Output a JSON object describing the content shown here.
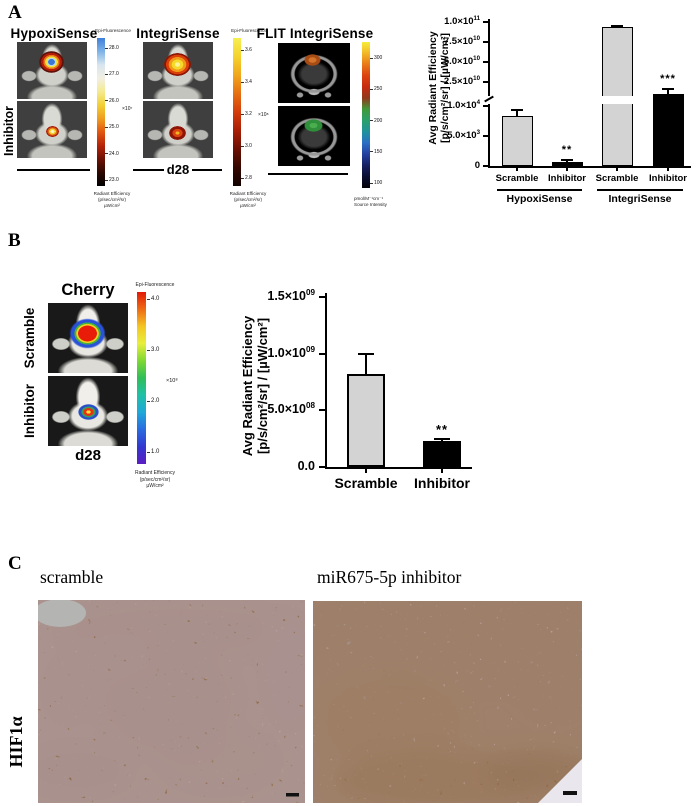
{
  "figure": {
    "panel_a": {
      "label": "A",
      "hypoxisense": {
        "title": "HypoxiSense",
        "side_label": "Inhibitor"
      },
      "integrisense": {
        "title": "IntegriSense",
        "timepoint": "d28"
      },
      "flit": {
        "title": "FLIT IntegriSense"
      },
      "colorbar_hypoxisense": {
        "top_label": "Epi-Fluorescence",
        "ticks": [
          "28.0",
          "27.0",
          "26.0",
          "25.0",
          "24.0",
          "23.0"
        ],
        "multiplier": "×10⁷",
        "bottom_label": "Radiant Efficiency\n(p/sec/cm²/sr)\nµW/cm²",
        "gradient": [
          "#3d7fd9",
          "#7eb3e8",
          "#d8e6ee",
          "#f2efe2",
          "#f4ea8e",
          "#f2cf35",
          "#ef9c1f",
          "#e0560f",
          "#b52308",
          "#6e1204",
          "#2c0801",
          "#000000"
        ]
      },
      "colorbar_integrisense": {
        "top_label": "Epi-Fluorescence",
        "ticks": [
          "3.6",
          "3.4",
          "3.2",
          "3.0",
          "2.8"
        ],
        "multiplier": "×10⁸",
        "bottom_label": "Radiant Efficiency\n(p/sec/cm²/sr)\nµW/cm²",
        "gradient": [
          "#f6ee52",
          "#f4d32c",
          "#f0a61c",
          "#e66f12",
          "#d43c0a",
          "#a81f06",
          "#6b1003",
          "#330700",
          "#120200"
        ]
      },
      "colorbar_flit": {
        "ticks": [
          "300",
          "250",
          "200",
          "150",
          "100"
        ],
        "bottom_label": "pmol/M⁻¹cm⁻¹\nSource Intensity",
        "gradient": [
          "#f6ec3c",
          "#f2b824",
          "#e87818",
          "#dc4410",
          "#c62b10",
          "#8f3a1c",
          "#3f9a3a",
          "#2aa06c",
          "#21929c",
          "#2b6ec4",
          "#2340a0",
          "#172060",
          "#0a0e30",
          "#020208"
        ]
      }
    },
    "panel_b": {
      "label": "B",
      "title": "Cherry",
      "side_labels": [
        "Scramble",
        "Inhibitor"
      ],
      "timepoint": "d28",
      "colorbar": {
        "top_label": "Epi-Fluorescence",
        "ticks": [
          "4.0",
          "3.0",
          "2.0",
          "1.0"
        ],
        "multiplier": "×10⁸",
        "bottom_label": "Radiant Efficiency\n(p/sec/cm²/sr)\nµW/cm²",
        "gradient": [
          "#e21a08",
          "#ee6a12",
          "#f4c622",
          "#e8ee3a",
          "#7ed832",
          "#2fbe58",
          "#1fc0a8",
          "#1fa8d8",
          "#2a6ae0",
          "#3338d0",
          "#5a1ec2"
        ]
      }
    },
    "panel_c": {
      "label": "C",
      "left_title": "scramble",
      "right_title": "miR675-5p inhibitor",
      "side_label": "HIF1α"
    }
  },
  "chart_data": [
    {
      "id": "chart_a",
      "type": "bar",
      "title": "",
      "ylabel_line1": "Avg Radiant Efficiency",
      "ylabel_line2": "[p/s/cm²/sr] / [µW/cm²]",
      "broken_axis": true,
      "upper_axis": {
        "range": [
          25000000000.0,
          100000000000.0
        ],
        "ticks": [
          {
            "label_base": "1.0×10",
            "label_exp": "11",
            "value": 100000000000.0
          },
          {
            "label_base": "7.5×10",
            "label_exp": "10",
            "value": 75000000000.0
          },
          {
            "label_base": "5.0×10",
            "label_exp": "10",
            "value": 50000000000.0
          },
          {
            "label_base": "2.5×10",
            "label_exp": "10",
            "value": 25000000000.0
          }
        ]
      },
      "lower_axis": {
        "range": [
          0,
          10000.0
        ],
        "ticks": [
          {
            "label_base": "1.0×10",
            "label_exp": "4",
            "value": 10000.0
          },
          {
            "label_base": "5.0×10",
            "label_exp": "3",
            "value": 5000.0
          },
          {
            "label_base": "0",
            "label_exp": "",
            "value": 0
          }
        ]
      },
      "groups": [
        {
          "label": "HypoxiSense",
          "bars": [
            {
              "label": "Scramble",
              "value": 8300,
              "error": 1100,
              "color": "#d3d3d3",
              "sig": ""
            },
            {
              "label": "Inhibitor",
              "value": 600,
              "error": 350,
              "color": "#000000",
              "sig": "**"
            }
          ]
        },
        {
          "label": "IntegriSense",
          "bars": [
            {
              "label": "Scramble",
              "value": 94000000000.0,
              "error": 1500000000.0,
              "color": "#d3d3d3",
              "sig": ""
            },
            {
              "label": "Inhibitor",
              "value": 10000000000.0,
              "error": 6000000000.0,
              "color": "#000000",
              "sig": "***"
            }
          ]
        }
      ]
    },
    {
      "id": "chart_b",
      "type": "bar",
      "title": "",
      "ylabel_line1": "Avg Radiant Efficiency",
      "ylabel_line2": "[p/s/cm²/sr] / [µW/cm²]",
      "ylim": [
        0,
        1500000000.0
      ],
      "yticks": [
        {
          "label_base": "1.5×10",
          "label_exp": "09",
          "value": 1500000000.0
        },
        {
          "label_base": "1.0×10",
          "label_exp": "09",
          "value": 1000000000.0
        },
        {
          "label_base": "5.0×10",
          "label_exp": "08",
          "value": 500000000.0
        },
        {
          "label_base": "0.0",
          "label_exp": "",
          "value": 0
        }
      ],
      "bars": [
        {
          "label": "Scramble",
          "value": 820000000.0,
          "error": 180000000.0,
          "color": "#d3d3d3",
          "sig": ""
        },
        {
          "label": "Inhibitor",
          "value": 230000000.0,
          "error": 20000000.0,
          "color": "#000000",
          "sig": "**"
        }
      ]
    }
  ],
  "colors": {
    "bar_gray": "#d3d3d3",
    "bar_black": "#000000",
    "axis": "#000000"
  }
}
